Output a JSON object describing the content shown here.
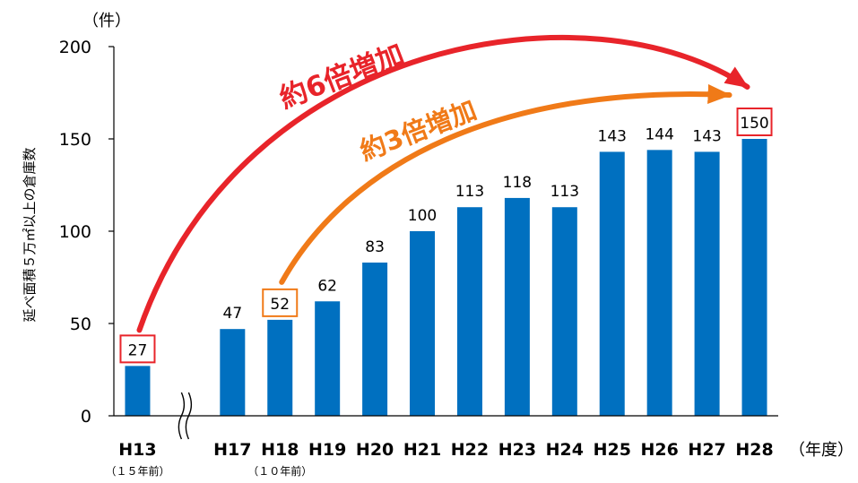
{
  "chart_data": {
    "type": "bar",
    "unit": "（件）",
    "ylabel": "延べ面積５万㎡以上の倉庫数",
    "xlabel": "（年度）",
    "ylim": [
      0,
      200
    ],
    "yticks": [
      0,
      50,
      100,
      150,
      200
    ],
    "grid": false,
    "axis_break": "between H13 and H17",
    "categories": [
      "H13",
      "H17",
      "H18",
      "H19",
      "H20",
      "H21",
      "H22",
      "H23",
      "H24",
      "H25",
      "H26",
      "H27",
      "H28"
    ],
    "values": [
      27,
      47,
      52,
      62,
      83,
      100,
      113,
      118,
      113,
      143,
      144,
      143,
      150
    ],
    "category_notes": {
      "H13": "（１５年前）",
      "H18": "（１０年前）"
    },
    "bar_color": "#0070c0",
    "highlighted": [
      {
        "category": "H13",
        "box_color": "#e8242a"
      },
      {
        "category": "H18",
        "box_color": "#f07a18"
      },
      {
        "category": "H28",
        "box_color": "#e8242a"
      }
    ],
    "annotations": [
      {
        "text": "約6倍増加",
        "from": "H13",
        "to": "H28",
        "color": "#e8242a"
      },
      {
        "text": "約3倍増加",
        "from": "H18",
        "to": "H28",
        "color": "#f07a18"
      }
    ]
  }
}
